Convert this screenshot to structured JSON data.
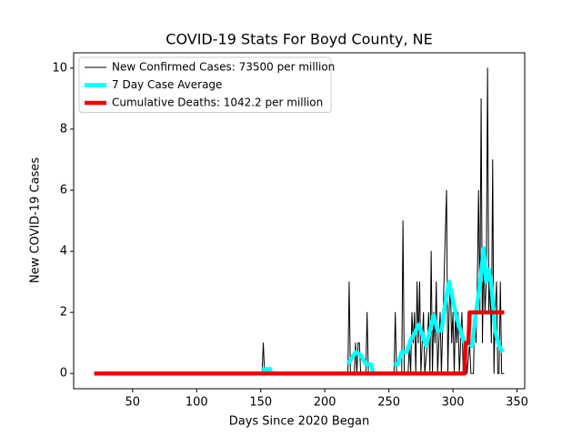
{
  "chart_data": {
    "type": "line",
    "title": "COVID-19 Stats For Boyd County, NE",
    "x_label": "Days Since 2020 Began",
    "y_label": "New COVID-19 Cases",
    "xlim": [
      4,
      356
    ],
    "ylim": [
      -0.5,
      10.5
    ],
    "xticks": [
      50,
      100,
      150,
      200,
      250,
      300,
      350
    ],
    "yticks": [
      0,
      2,
      4,
      6,
      8,
      10
    ],
    "grid": false,
    "legend": "upper left",
    "series": [
      {
        "name": "New Confirmed Cases: 73500 per million",
        "color": "#000000",
        "width": 1,
        "x": [
          20,
          151,
          152,
          153,
          218,
          219,
          220,
          223,
          224,
          225,
          226,
          227,
          228,
          232,
          233,
          234,
          254,
          255,
          256,
          260,
          261,
          262,
          265,
          266,
          267,
          268,
          269,
          270,
          271,
          272,
          273,
          274,
          275,
          277,
          278,
          280,
          281,
          282,
          283,
          284,
          285,
          286,
          287,
          288,
          289,
          290,
          291,
          293,
          295,
          296,
          297,
          298,
          299,
          300,
          301,
          302,
          303,
          304,
          305,
          306,
          307,
          308,
          310,
          311,
          313,
          314,
          316,
          317,
          318,
          319,
          320,
          321,
          322,
          323,
          324,
          325,
          326,
          327,
          328,
          329,
          330,
          331,
          332,
          333,
          334,
          335,
          336,
          337,
          338,
          340
        ],
        "values": [
          0,
          0,
          1,
          0,
          0,
          3,
          0,
          0,
          1,
          0,
          1,
          1,
          0,
          0,
          2,
          0,
          0,
          2,
          0,
          0,
          5,
          0,
          0,
          1,
          0,
          2,
          1,
          2,
          0,
          3,
          1,
          3,
          0,
          2,
          0,
          1,
          2,
          0,
          4,
          0,
          2,
          1,
          3,
          0,
          1,
          2,
          0,
          3,
          6,
          0,
          2,
          3,
          1,
          2,
          0,
          2,
          1,
          2,
          0,
          1,
          2,
          0,
          1,
          0,
          1,
          0,
          0,
          2,
          1,
          3,
          6,
          2,
          9,
          1,
          4,
          2,
          3,
          10,
          2,
          3,
          1,
          7,
          0,
          2,
          3,
          0,
          0,
          3,
          0,
          0
        ]
      },
      {
        "name": "7 Day Case Average",
        "color": "#00ffff",
        "width": 4.5,
        "x": [
          151,
          159,
          160,
          218,
          221,
          224,
          228,
          232,
          236,
          238,
          239,
          254,
          257,
          260,
          264,
          267,
          270,
          273,
          276,
          279,
          282,
          285,
          288,
          291,
          294,
          297,
          300,
          303,
          306,
          309,
          312,
          315,
          318,
          321,
          324,
          326,
          328,
          330,
          333,
          336,
          339
        ],
        "values": [
          0.14,
          0.14,
          null,
          0.3,
          0.5,
          0.7,
          0.6,
          0.3,
          0.3,
          0,
          null,
          0.3,
          0.3,
          0.7,
          0.7,
          1.1,
          1.3,
          1.6,
          1.3,
          0.9,
          1.4,
          1.9,
          1.4,
          1.4,
          2.3,
          3.0,
          2.4,
          1.8,
          1.4,
          1.0,
          1.0,
          0.9,
          2.0,
          2.9,
          4.1,
          3.0,
          3.4,
          2.9,
          1.4,
          0.9,
          0.7
        ]
      },
      {
        "name": "Cumulative Deaths: 1042.2 per million",
        "color": "#ee0000",
        "width": 4.5,
        "x": [
          20,
          309,
          310,
          312,
          313,
          340
        ],
        "values": [
          0,
          0,
          1,
          1,
          2,
          2
        ]
      }
    ]
  }
}
